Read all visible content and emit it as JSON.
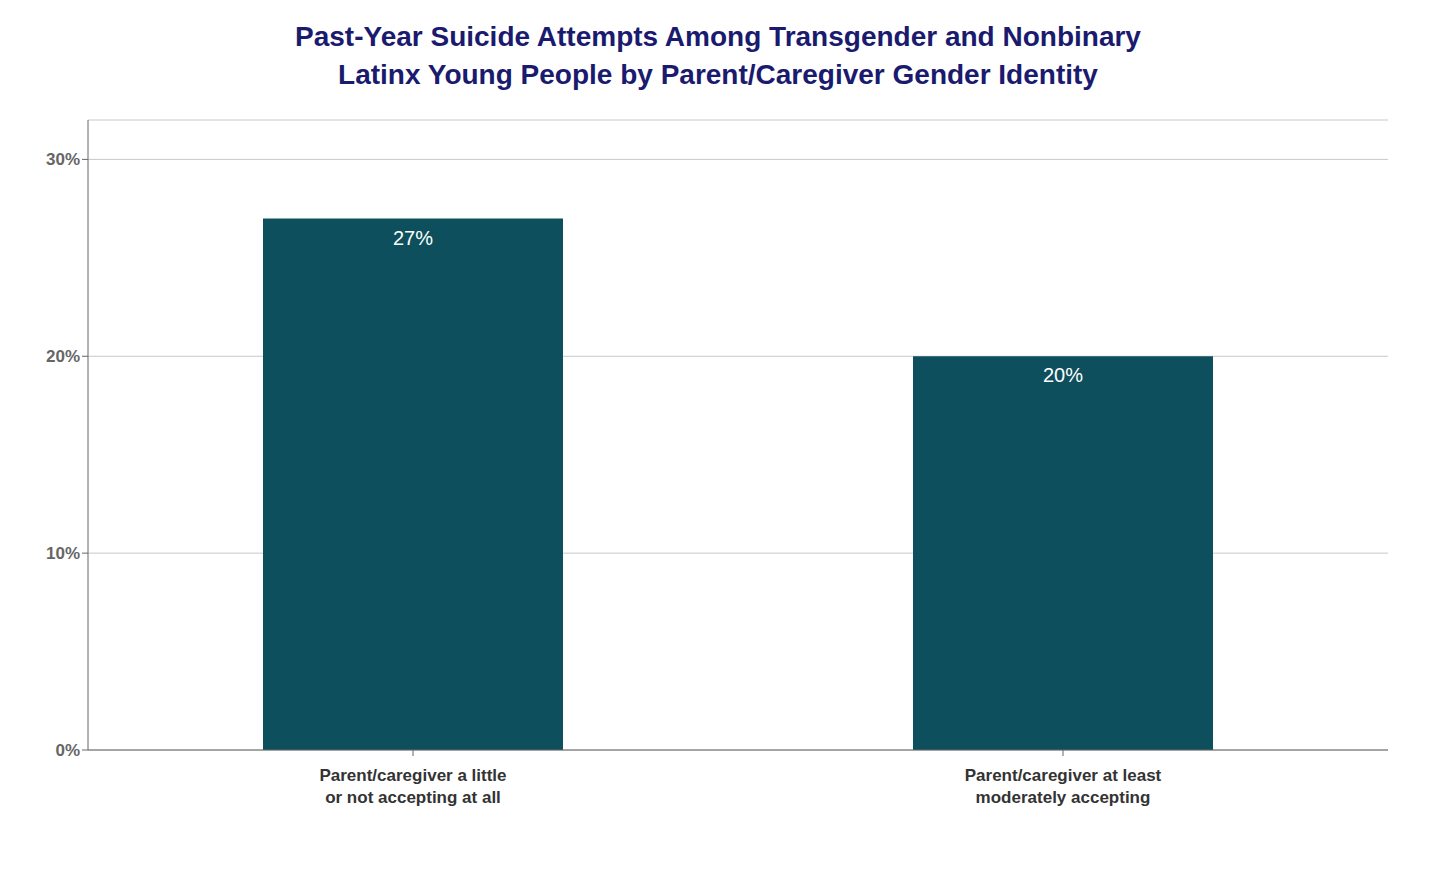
{
  "chart_data": {
    "type": "bar",
    "title": "Past-Year Suicide Attempts Among Transgender and Nonbinary\nLatinx Young People by Parent/Caregiver Gender Identity",
    "categories": [
      "Parent/caregiver a little\nor not accepting at all",
      "Parent/caregiver at least\nmoderately accepting"
    ],
    "values": [
      27,
      20
    ],
    "value_labels": [
      "27%",
      "20%"
    ],
    "data_labels": true,
    "color": "#0d4f5c",
    "ylim": [
      0,
      32
    ],
    "yticks": [
      {
        "value": 0,
        "label": "0%"
      },
      {
        "value": 10,
        "label": "10%"
      },
      {
        "value": 20,
        "label": "20%"
      },
      {
        "value": 30,
        "label": "30%"
      }
    ],
    "grid": true
  }
}
